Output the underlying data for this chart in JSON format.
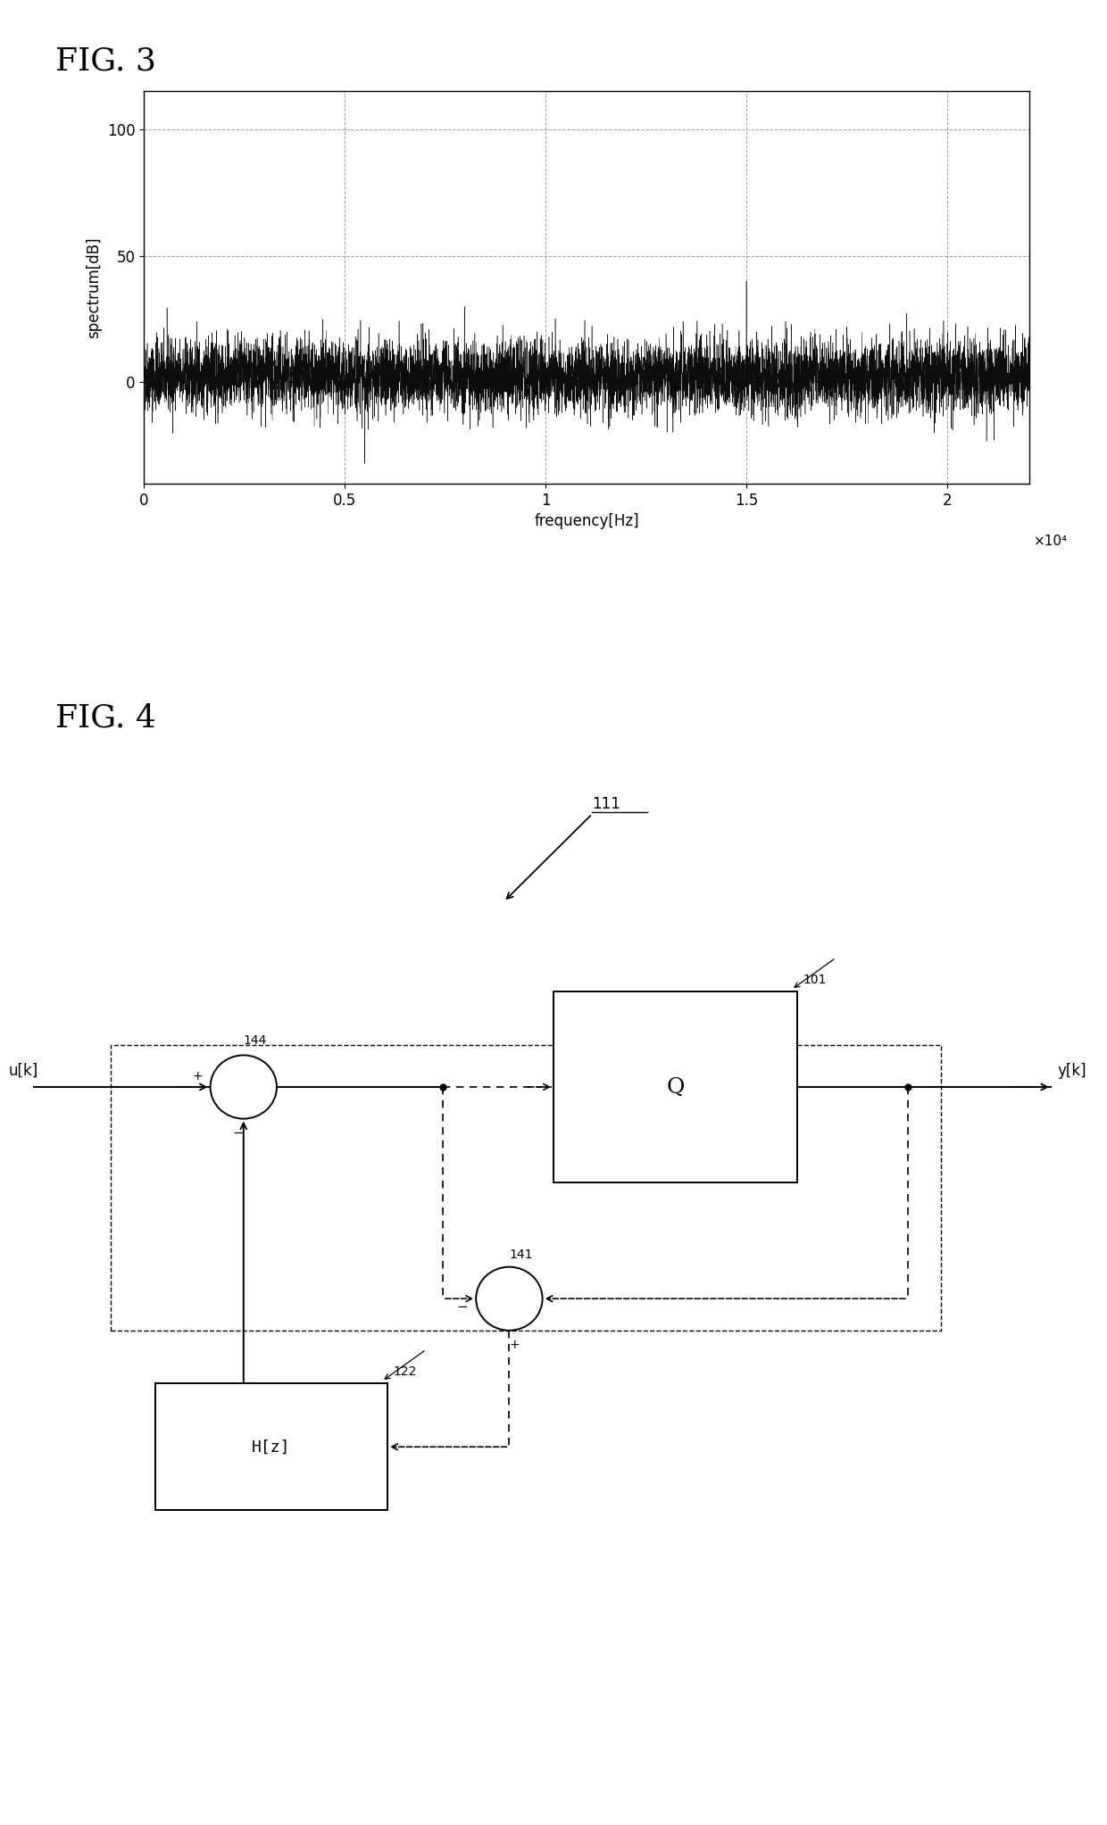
{
  "fig3_title": "FIG. 3",
  "fig4_title": "FIG. 4",
  "plot_ylabel": "spectrum[dB]",
  "plot_xlabel": "frequency[Hz]",
  "plot_xlim": [
    0,
    22050
  ],
  "plot_ylim": [
    -40,
    115
  ],
  "plot_yticks": [
    0,
    50,
    100
  ],
  "plot_xticks": [
    0,
    5000,
    10000,
    15000,
    20000
  ],
  "plot_xticklabels": [
    "0",
    "0.5",
    "1",
    "1.5",
    "2"
  ],
  "plot_x10label": "×10⁴",
  "noise_seed": 42,
  "noise_n": 8000,
  "noise_mean": 2.5,
  "noise_std": 7,
  "bg_color": "#ffffff",
  "line_color": "#000000",
  "grid_color": "#888888"
}
